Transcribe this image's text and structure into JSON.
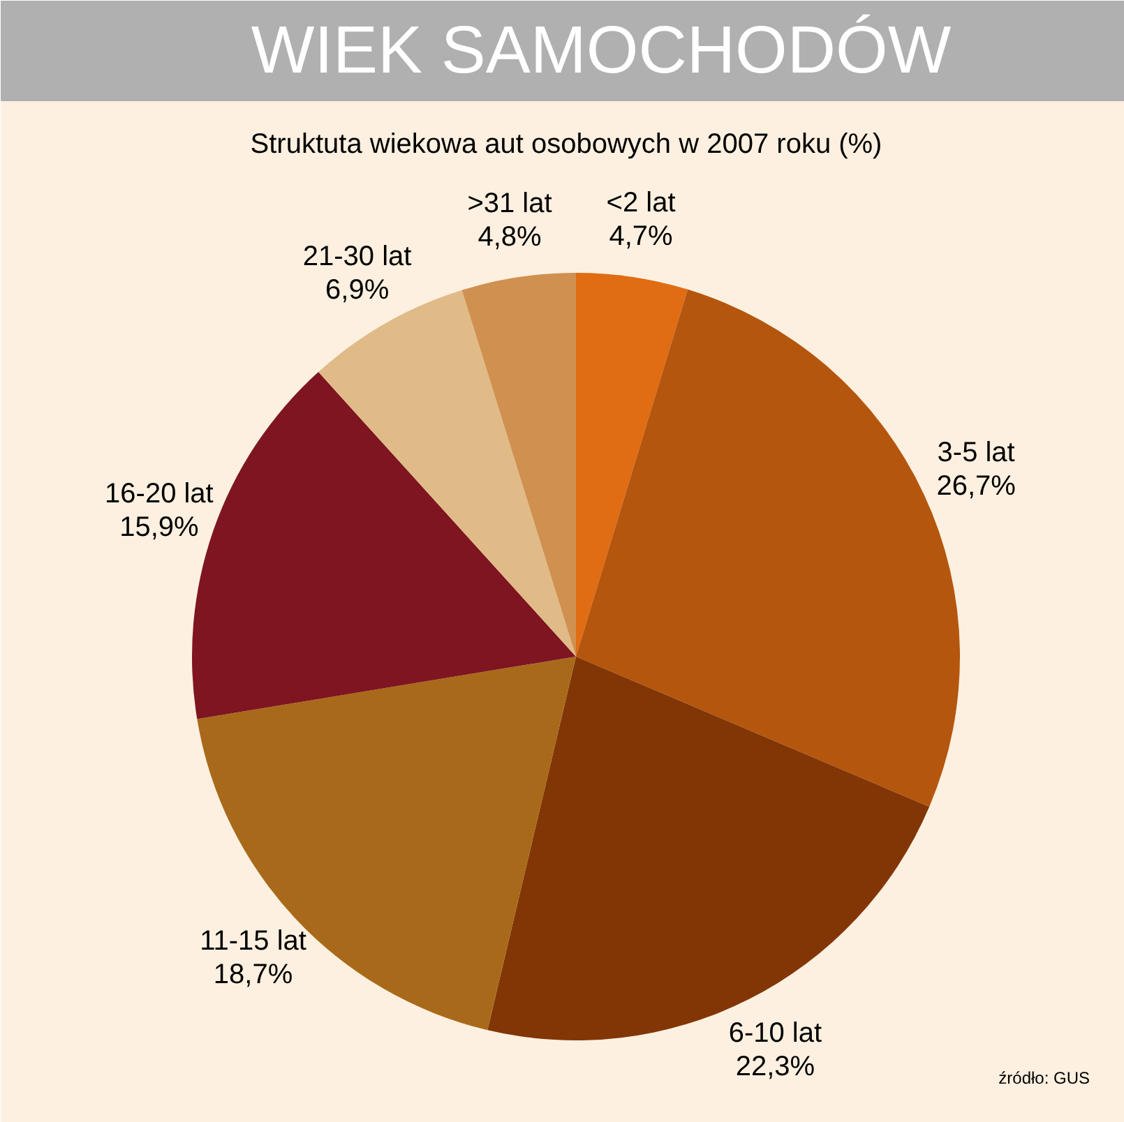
{
  "chart_data": {
    "type": "pie",
    "title": "WIEK SAMOCHODÓW",
    "subtitle": "Struktuta wiekowa aut osobowych w 2007 roku (%)",
    "categories": [
      "<2 lat",
      "3-5 lat",
      "6-10 lat",
      "11-15 lat",
      "16-20 lat",
      "21-30 lat",
      ">31 lat"
    ],
    "values": [
      4.7,
      26.7,
      22.3,
      18.7,
      15.9,
      6.9,
      4.8
    ],
    "value_labels": [
      "4,7%",
      "26,7%",
      "22,3%",
      "18,7%",
      "15,9%",
      "6,9%",
      "4,8%"
    ],
    "colors": [
      "#e06c14",
      "#b5560e",
      "#823606",
      "#a86a1a",
      "#7e1520",
      "#e0bb88",
      "#d09050"
    ],
    "annotations": [
      "źródło: GUS"
    ],
    "legend": false
  }
}
